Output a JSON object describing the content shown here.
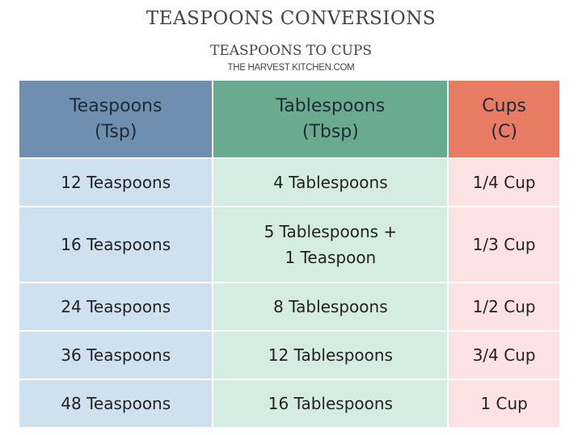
{
  "title": "TEASPOONS CONVERSIONS",
  "subtitle": "TEASPOONS TO CUPS",
  "source": "THE HARVEST KITCHEN.COM",
  "colors": {
    "header": [
      "#6f8fb0",
      "#6aaa8f",
      "#e87b64"
    ],
    "body": [
      "#cfe0ee",
      "#d5ece3",
      "#fde2e3"
    ]
  },
  "headers": [
    [
      "Teaspoons",
      "(Tsp)"
    ],
    [
      "Tablespoons",
      "(Tbsp)"
    ],
    [
      "Cups",
      "(C)"
    ]
  ],
  "rows": [
    [
      "12 Teaspoons",
      [
        "4 Tablespoons"
      ],
      "1/4 Cup"
    ],
    [
      "16 Teaspoons",
      [
        "5 Tablespoons +",
        "1 Teaspoon"
      ],
      "1/3 Cup"
    ],
    [
      "24 Teaspoons",
      [
        "8 Tablespoons"
      ],
      "1/2 Cup"
    ],
    [
      "36 Teaspoons",
      [
        "12 Tablespoons"
      ],
      "3/4 Cup"
    ],
    [
      "48 Teaspoons",
      [
        "16 Tablespoons"
      ],
      "1 Cup"
    ]
  ]
}
